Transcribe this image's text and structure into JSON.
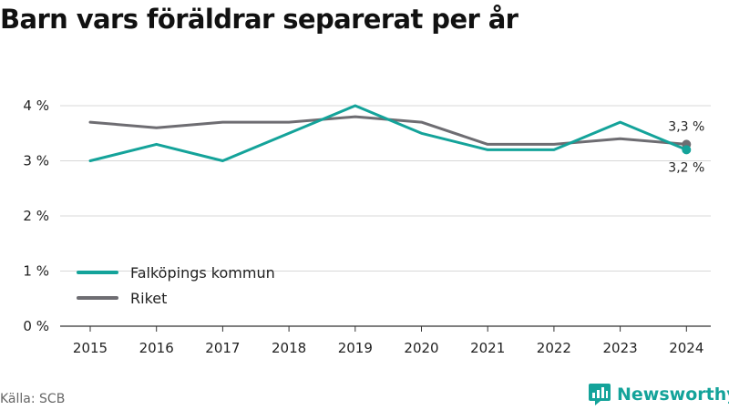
{
  "page": {
    "title": "Barn vars föräldrar separerat per år",
    "source": "Källa: SCB",
    "brand": "Newsworthy"
  },
  "colors": {
    "falkoping": "#14a39a",
    "riket": "#6e6d72",
    "grid": "#d8d8d8",
    "axis": "#333333",
    "brand": "#14a39a"
  },
  "chart_data": {
    "type": "line",
    "title": "Barn vars föräldrar separerat per år",
    "categories": [
      "2015",
      "2016",
      "2017",
      "2018",
      "2019",
      "2020",
      "2021",
      "2022",
      "2023",
      "2024"
    ],
    "series": [
      {
        "name": "Falköpings kommun",
        "color": "#14a39a",
        "values": [
          3.0,
          3.3,
          3.0,
          3.5,
          4.0,
          3.5,
          3.2,
          3.2,
          3.7,
          3.2
        ],
        "end_label": "3,2 %"
      },
      {
        "name": "Riket",
        "color": "#6e6d72",
        "values": [
          3.7,
          3.6,
          3.7,
          3.7,
          3.8,
          3.7,
          3.3,
          3.3,
          3.4,
          3.3
        ],
        "end_label": "3,3 %"
      }
    ],
    "y_ticks": [
      "0 %",
      "1 %",
      "2 %",
      "3 %",
      "4 %"
    ],
    "ylim": [
      0,
      4
    ],
    "grid": true,
    "legend": "bottom-left"
  }
}
